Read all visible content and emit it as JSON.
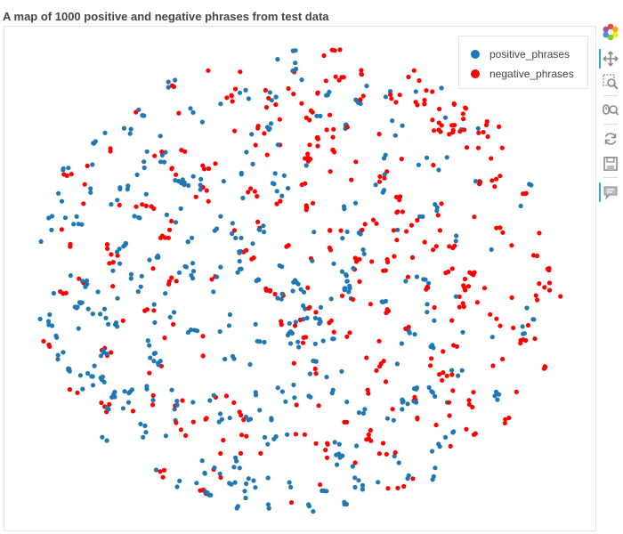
{
  "chart_data": {
    "type": "scatter",
    "title": "A map of 1000 positive and negative phrases from test data",
    "legend_position": "top-right",
    "grid": false,
    "n_points": 1000,
    "series": [
      {
        "name": "positive_phrases",
        "color": "#1f77b4"
      },
      {
        "name": "negative_phrases",
        "color": "#ff0000"
      }
    ]
  },
  "toolbar": {
    "tools": [
      {
        "icon": "bokeh-logo-icon"
      },
      {
        "icon": "pan-icon",
        "active": true
      },
      {
        "icon": "box-zoom-icon"
      },
      {
        "icon": "wheel-zoom-icon"
      },
      {
        "icon": "reset-icon"
      },
      {
        "icon": "save-icon"
      },
      {
        "icon": "hover-icon",
        "active": true
      }
    ]
  }
}
